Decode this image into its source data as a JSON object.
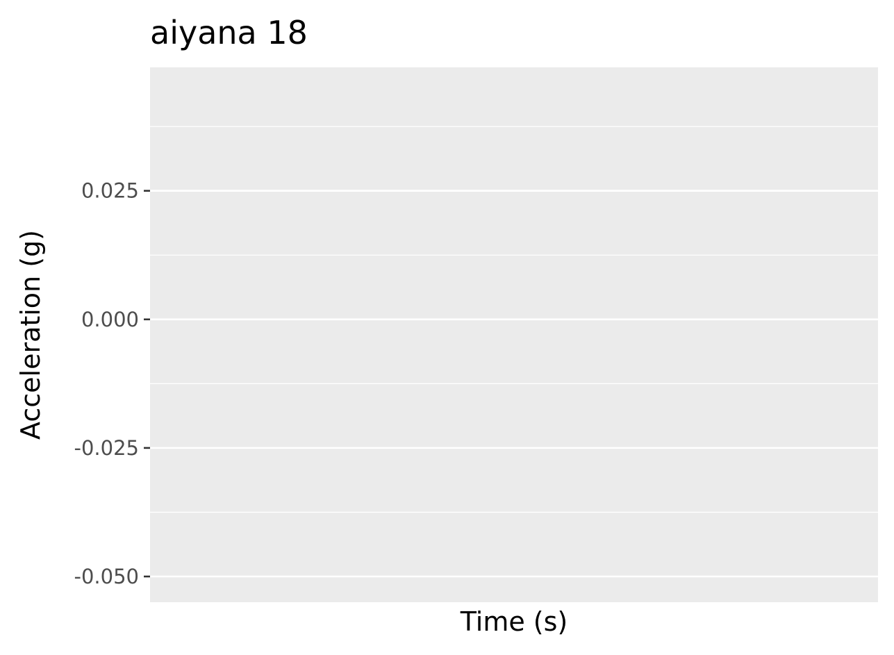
{
  "chart_data": {
    "type": "line",
    "title": "aiyana 18",
    "xlabel": "Time (s)",
    "ylabel": "Acceleration (g)",
    "ylim": [
      -0.055,
      0.049
    ],
    "y_ticks": [
      -0.05,
      -0.025,
      0.0,
      0.025
    ],
    "y_tick_labels": [
      "-0.050",
      "-0.025",
      "0.000",
      "0.025"
    ],
    "y_minor_gridlines": [
      -0.0375,
      -0.0125,
      0.0125,
      0.0375
    ],
    "x_ticks": [],
    "series": [],
    "grid": true,
    "legend": "none",
    "colors": {
      "panel_background": "#ebebeb",
      "gridline": "#ffffff",
      "tick_label": "#4d4d4d",
      "tick_mark": "#333333",
      "text": "#000000"
    }
  }
}
